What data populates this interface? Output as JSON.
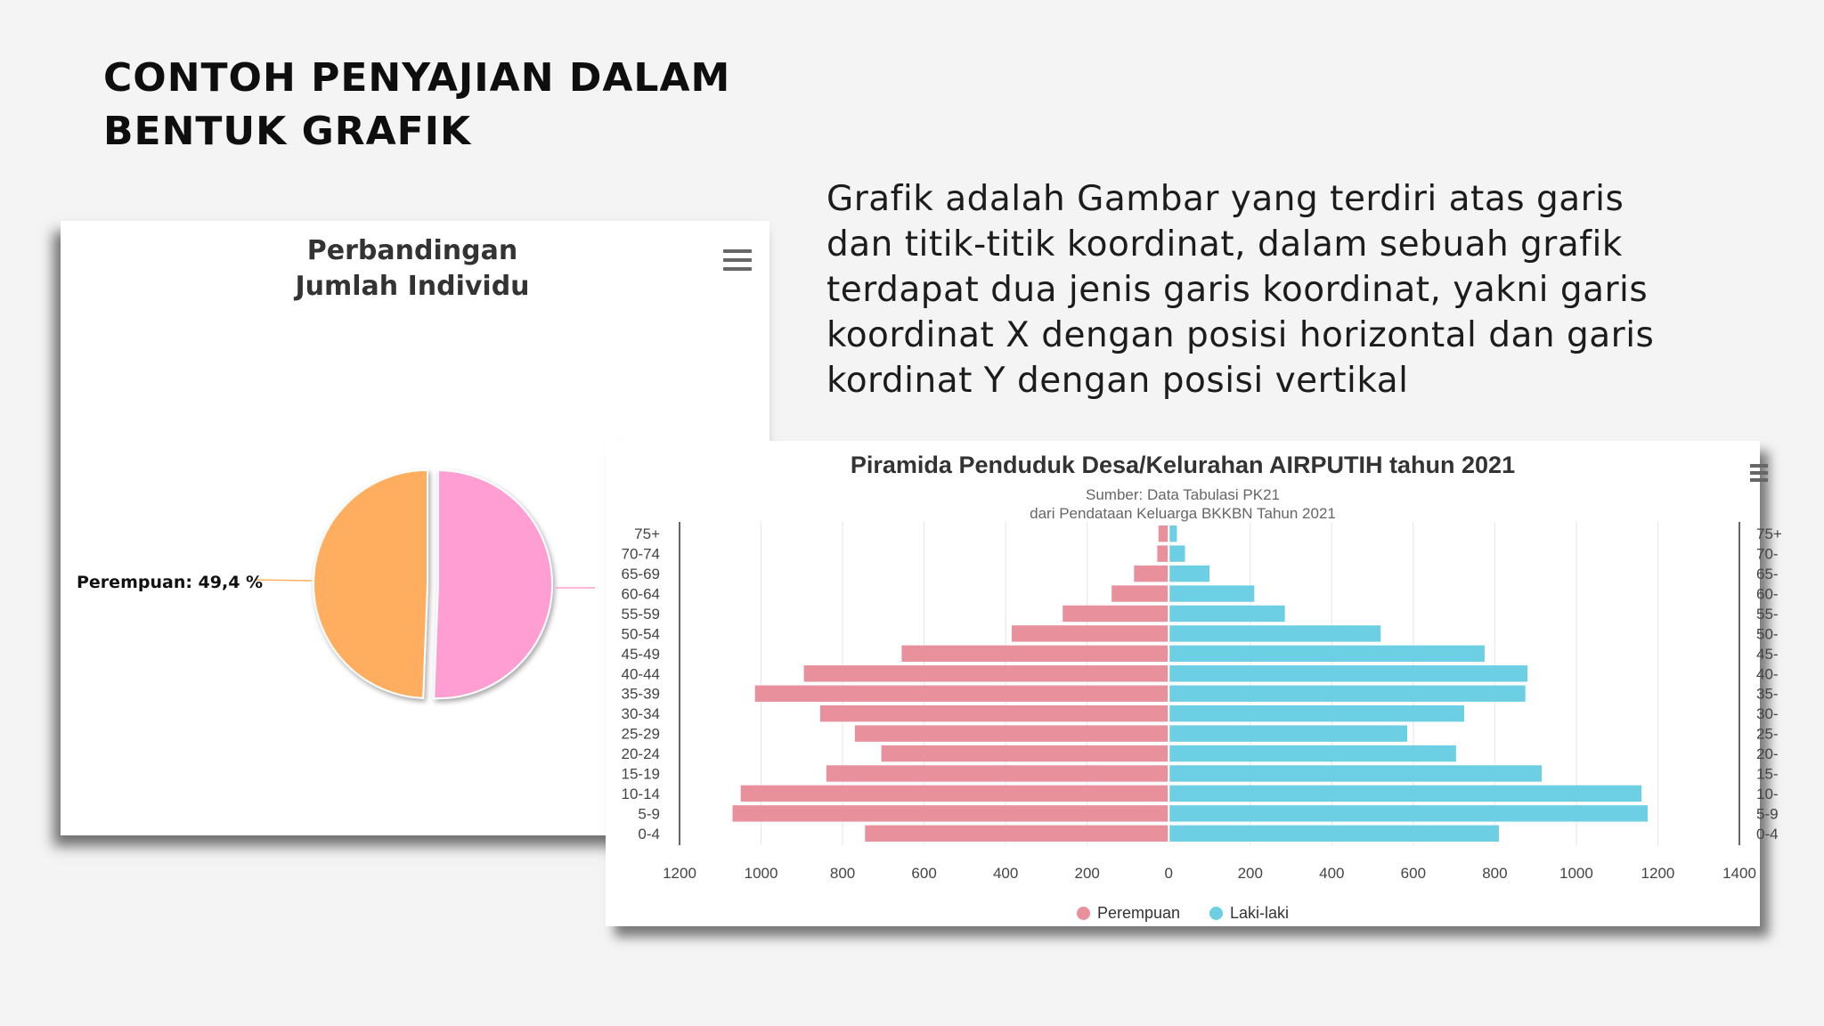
{
  "slide": {
    "title_lines": [
      "CONTOH PENYAJIAN DALAM",
      "BENTUK GRAFIK"
    ],
    "description_lines": [
      "Grafik adalah Gambar yang terdiri atas garis",
      "dan titik-titik koordinat, dalam sebuah grafik",
      "terdapat dua jenis garis koordinat, yakni garis",
      "koordinat X dengan posisi horizontal dan garis",
      "kordinat Y dengan posisi vertikal"
    ]
  },
  "pie_card": {
    "title_lines": [
      "Perbandingan",
      "Jumlah Individu"
    ],
    "menu_icon": "hamburger-icon",
    "label_text": "Perempuan: 49,4 %"
  },
  "pyramid_card": {
    "title": "Piramida Penduduk Desa/Kelurahan AIRPUTIH tahun 2021",
    "subtitle_lines": [
      "Sumber: Data Tabulasi PK21",
      "dari Pendataan Keluarga BKKBN Tahun 2021"
    ],
    "menu_icon": "hamburger-icon",
    "legend": [
      {
        "label": "Perempuan",
        "color": "#e8909c"
      },
      {
        "label": "Laki-laki",
        "color": "#6ccfe3"
      }
    ]
  },
  "chart_data": [
    {
      "type": "pie",
      "title": "Perbandingan Jumlah Individu",
      "slices": [
        {
          "name": "Perempuan",
          "value": 49.4,
          "label": "Perempuan: 49,4 %",
          "color": "#ffae60"
        },
        {
          "name": "",
          "value": 50.6,
          "color": "#ff9ed2"
        }
      ]
    },
    {
      "type": "bar",
      "orientation": "horizontal",
      "title": "Piramida Penduduk Desa/Kelurahan AIRPUTIH tahun 2021",
      "subtitle": "Sumber: Data Tabulasi PK21 dari Pendataan Keluarga BKKBN Tahun 2021",
      "categories": [
        "75+",
        "70-74",
        "65-69",
        "60-64",
        "55-59",
        "50-54",
        "45-49",
        "40-44",
        "35-39",
        "30-34",
        "25-29",
        "20-24",
        "15-19",
        "10-14",
        "5-9",
        "0-4"
      ],
      "series": [
        {
          "name": "Perempuan",
          "color": "#e8909c",
          "values": [
            25,
            28,
            85,
            140,
            260,
            385,
            655,
            895,
            1015,
            855,
            770,
            705,
            840,
            1050,
            1070,
            745
          ]
        },
        {
          "name": "Laki-laki",
          "color": "#6ccfe3",
          "values": [
            20,
            40,
            100,
            210,
            285,
            520,
            775,
            880,
            875,
            725,
            585,
            705,
            915,
            1160,
            1175,
            810
          ]
        }
      ],
      "xlim": [
        -1200,
        1400
      ],
      "xticks": [
        -1200,
        -1000,
        -800,
        -600,
        -400,
        -200,
        0,
        200,
        400,
        600,
        800,
        1000,
        1200,
        1400
      ],
      "xtick_labels": [
        "1200",
        "1000",
        "800",
        "600",
        "400",
        "200",
        "0",
        "200",
        "400",
        "600",
        "800",
        "1000",
        "1200",
        "1400"
      ],
      "right_axis_labels": [
        "75+",
        "70-",
        "65-",
        "60-",
        "55-",
        "50-",
        "45-",
        "40-",
        "35-",
        "30-",
        "25-",
        "20-",
        "15-",
        "10-",
        "5-9",
        "0-4"
      ],
      "grid": true,
      "legend_position": "bottom-center"
    }
  ]
}
